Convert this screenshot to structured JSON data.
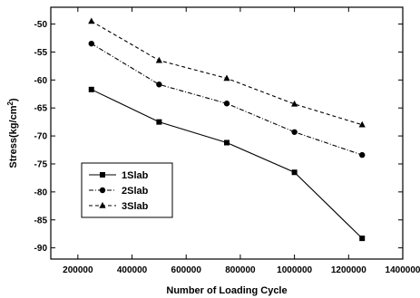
{
  "chart_data": {
    "type": "line",
    "title": "",
    "xlabel": "Number of Loading Cycle",
    "ylabel_main": "Stress(kg/cm",
    "ylabel_sup": "2",
    "ylabel_close": ")",
    "xlim": [
      100000,
      1400000
    ],
    "ylim": [
      -92,
      -47
    ],
    "x_ticks": [
      200000,
      400000,
      600000,
      800000,
      1000000,
      1200000,
      1400000
    ],
    "y_ticks": [
      -50,
      -55,
      -60,
      -65,
      -70,
      -75,
      -80,
      -85,
      -90
    ],
    "x": [
      250000,
      500000,
      750000,
      1000000,
      1250000
    ],
    "series": [
      {
        "name": "1Slab",
        "values": [
          -61.7,
          -67.5,
          -71.2,
          -76.5,
          -88.3
        ],
        "marker": "square",
        "dash": "solid"
      },
      {
        "name": "2Slab",
        "values": [
          -53.5,
          -60.8,
          -64.2,
          -69.3,
          -73.4
        ],
        "marker": "circle",
        "dash": "dash-dot"
      },
      {
        "name": "3Slab",
        "values": [
          -49.5,
          -56.5,
          -59.7,
          -64.3,
          -68.0
        ],
        "marker": "triangle",
        "dash": "dashed"
      }
    ],
    "legend_position": "bottom-left",
    "grid": false,
    "color": "#000000"
  }
}
